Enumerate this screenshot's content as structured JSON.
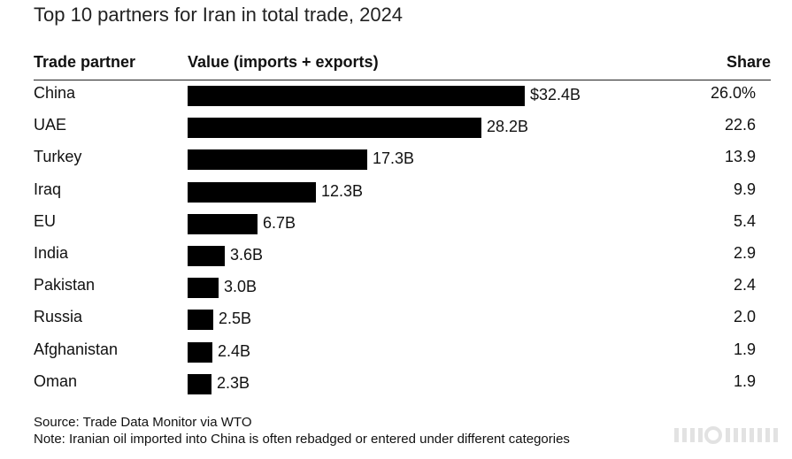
{
  "title": "Top 10 partners for Iran in total trade, 2024",
  "headers": {
    "partner": "Trade partner",
    "value": "Value (imports + exports)",
    "share": "Share"
  },
  "chart_data": {
    "type": "bar",
    "orientation": "horizontal",
    "title": "Top 10 partners for Iran in total trade, 2024",
    "xlabel": "Value (imports + exports)",
    "ylabel": "Trade partner",
    "unit": "billion USD",
    "categories": [
      "China",
      "UAE",
      "Turkey",
      "Iraq",
      "EU",
      "India",
      "Pakistan",
      "Russia",
      "Afghanistan",
      "Oman"
    ],
    "values": [
      32.4,
      28.2,
      17.3,
      12.3,
      6.7,
      3.6,
      3.0,
      2.5,
      2.4,
      2.3
    ],
    "value_labels": [
      "$32.4B",
      "28.2B",
      "17.3B",
      "12.3B",
      "6.7B",
      "3.6B",
      "3.0B",
      "2.5B",
      "2.4B",
      "2.3B"
    ],
    "shares": [
      "26.0%",
      "22.6",
      "13.9",
      "9.9",
      "5.4",
      "2.9",
      "2.4",
      "2.0",
      "1.9",
      "1.9"
    ],
    "xlim": [
      0,
      32.4
    ],
    "bar_color": "#000000"
  },
  "footer": {
    "source": "Source: Trade Data Monitor via WTO",
    "note": "Note: Iranian oil imported into China is often rebadged or entered under different categories"
  }
}
